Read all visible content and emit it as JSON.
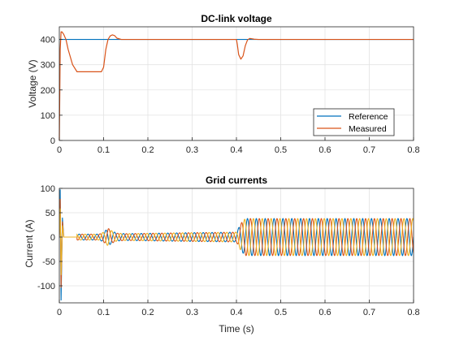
{
  "chart_data": [
    {
      "type": "line",
      "title": "DC-link voltage",
      "xlabel": "",
      "ylabel": "Voltage (V)",
      "xlim": [
        0,
        0.8
      ],
      "ylim": [
        0,
        450
      ],
      "xticks": [
        "0",
        "0.1",
        "0.2",
        "0.3",
        "0.4",
        "0.5",
        "0.6",
        "0.7",
        "0.8"
      ],
      "yticks": [
        "0",
        "100",
        "200",
        "300",
        "400"
      ],
      "grid": true,
      "legend": "bottom-right",
      "series": [
        {
          "name": "Reference",
          "color": "#0072BD",
          "x": [
            0,
            0.008,
            0.8
          ],
          "y": [
            400,
            400,
            400
          ]
        },
        {
          "name": "Measured",
          "color": "#D95319",
          "x": [
            0,
            0.002,
            0.004,
            0.006,
            0.01,
            0.015,
            0.02,
            0.03,
            0.04,
            0.05,
            0.06,
            0.08,
            0.095,
            0.1,
            0.105,
            0.11,
            0.115,
            0.12,
            0.125,
            0.13,
            0.14,
            0.15,
            0.2,
            0.3,
            0.4,
            0.402,
            0.405,
            0.41,
            0.415,
            0.42,
            0.425,
            0.43,
            0.44,
            0.45,
            0.8
          ],
          "y": [
            0,
            360,
            430,
            430,
            420,
            400,
            360,
            300,
            272,
            272,
            272,
            272,
            272,
            290,
            360,
            400,
            414,
            418,
            415,
            405,
            400,
            400,
            400,
            400,
            400,
            380,
            340,
            322,
            335,
            375,
            398,
            404,
            401,
            400,
            400
          ]
        }
      ]
    },
    {
      "type": "line",
      "title": "Grid currents",
      "xlabel": "Time (s)",
      "ylabel": "Current (A)",
      "xlim": [
        0,
        0.8
      ],
      "ylim": [
        -135,
        100
      ],
      "xticks": [
        "0",
        "0.1",
        "0.2",
        "0.3",
        "0.4",
        "0.5",
        "0.6",
        "0.7",
        "0.8"
      ],
      "yticks": [
        "-100",
        "-50",
        "0",
        "50",
        "100"
      ],
      "grid": true,
      "frequency_hz": 50,
      "phases": [
        {
          "color": "#0072BD",
          "phase_deg": 0
        },
        {
          "color": "#D95319",
          "phase_deg": -120
        },
        {
          "color": "#EDB120",
          "phase_deg": 120
        }
      ],
      "amplitude_envelope": {
        "t": [
          0.04,
          0.09,
          0.1,
          0.11,
          0.12,
          0.13,
          0.15,
          0.3,
          0.4,
          0.41,
          0.42,
          0.8
        ],
        "amp": [
          6,
          6,
          10,
          18,
          12,
          8,
          7,
          9,
          10,
          28,
          38,
          38
        ]
      },
      "startup_spike": {
        "t": [
          0,
          0.002,
          0.004,
          0.007,
          0.01
        ],
        "values": [
          0,
          98,
          -130,
          40,
          0
        ]
      }
    }
  ]
}
